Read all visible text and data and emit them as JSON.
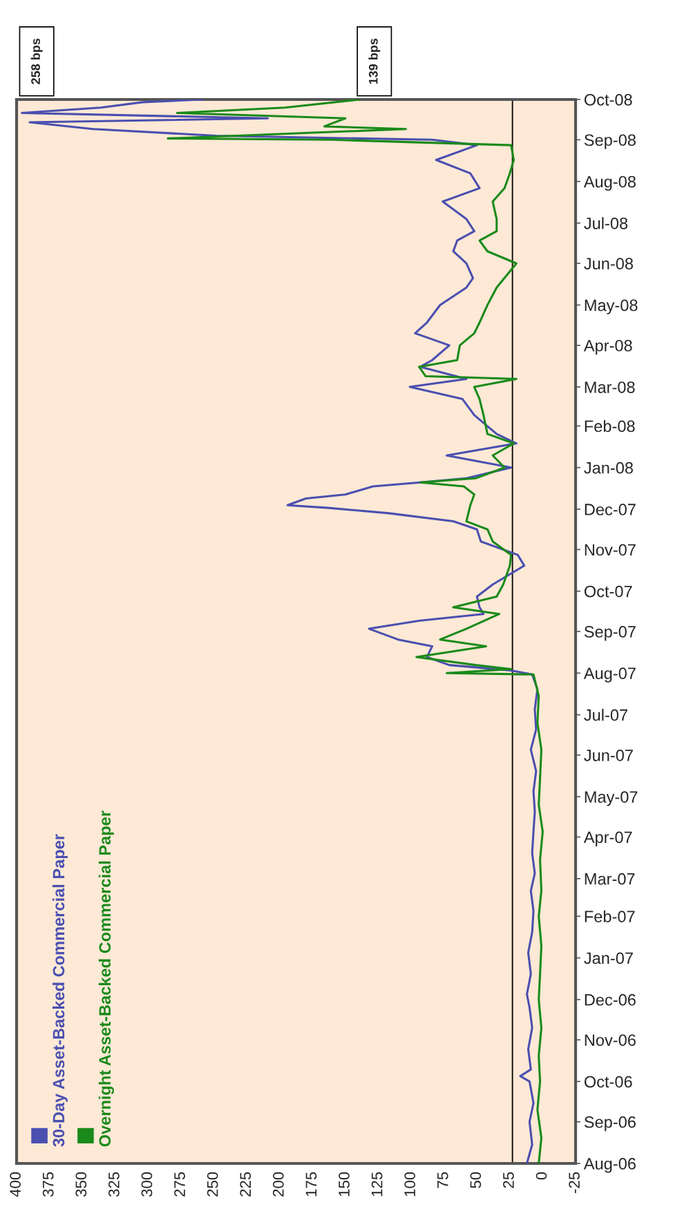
{
  "chart_data": {
    "type": "line",
    "orientation": "horizontal",
    "series": [
      {
        "name": "30-Day Asset-Backed Commercial Paper",
        "color": "#4a4fb0",
        "x": [
          "2006-08-01",
          "2006-08-15",
          "2006-09-01",
          "2006-09-15",
          "2006-10-01",
          "2006-10-05",
          "2006-10-10",
          "2006-10-25",
          "2006-11-10",
          "2006-11-25",
          "2006-12-05",
          "2006-12-20",
          "2007-01-05",
          "2007-01-20",
          "2007-02-05",
          "2007-02-20",
          "2007-03-05",
          "2007-03-20",
          "2007-04-05",
          "2007-04-20",
          "2007-05-05",
          "2007-05-20",
          "2007-06-05",
          "2007-06-20",
          "2007-07-05",
          "2007-07-20",
          "2007-07-31",
          "2007-08-03",
          "2007-08-07",
          "2007-08-13",
          "2007-08-21",
          "2007-08-26",
          "2007-09-03",
          "2007-09-09",
          "2007-09-14",
          "2007-09-19",
          "2007-09-27",
          "2007-10-06",
          "2007-10-20",
          "2007-10-28",
          "2007-11-07",
          "2007-11-16",
          "2007-11-22",
          "2007-11-28",
          "2007-12-02",
          "2007-12-04",
          "2007-12-09",
          "2007-12-12",
          "2007-12-18",
          "2007-12-21",
          "2007-12-24",
          "2008-01-01",
          "2008-01-10",
          "2008-01-19",
          "2008-01-26",
          "2008-02-09",
          "2008-02-21",
          "2008-03-01",
          "2008-03-07",
          "2008-03-16",
          "2008-03-21",
          "2008-04-01",
          "2008-04-10",
          "2008-04-18",
          "2008-05-01",
          "2008-05-14",
          "2008-05-21",
          "2008-06-01",
          "2008-06-10",
          "2008-06-18",
          "2008-06-25",
          "2008-07-04",
          "2008-07-17",
          "2008-07-27",
          "2008-08-07",
          "2008-08-17",
          "2008-08-28",
          "2008-09-01",
          "2008-09-04",
          "2008-09-09",
          "2008-09-14",
          "2008-09-17",
          "2008-09-21",
          "2008-09-25",
          "2008-09-29",
          "2008-10-01"
        ],
        "values": [
          12,
          8,
          10,
          7,
          10,
          17,
          9,
          11,
          8,
          10,
          12,
          9,
          11,
          8,
          7,
          9,
          6,
          8,
          7,
          6,
          7,
          5,
          9,
          5,
          6,
          4,
          8,
          24,
          71,
          88,
          84,
          110,
          132,
          94,
          45,
          48,
          50,
          38,
          14,
          19,
          47,
          50,
          68,
          117,
          163,
          194,
          180,
          150,
          129,
          93,
          58,
          24,
          73,
          20,
          35,
          52,
          61,
          101,
          58,
          93,
          84,
          71,
          97,
          88,
          78,
          58,
          53,
          58,
          68,
          65,
          52,
          58,
          76,
          48,
          55,
          81,
          50,
          84,
          248,
          342,
          390,
          209,
          396,
          336,
          304,
          258
        ]
      },
      {
        "name": "Overnight Asset-Backed Commercial Paper",
        "color": "#1a8a1a",
        "x": [
          "2006-08-01",
          "2006-08-20",
          "2006-09-10",
          "2006-10-01",
          "2006-10-20",
          "2006-11-10",
          "2006-12-01",
          "2006-12-20",
          "2007-01-10",
          "2007-02-01",
          "2007-02-20",
          "2007-03-15",
          "2007-04-05",
          "2007-04-25",
          "2007-05-15",
          "2007-06-05",
          "2007-06-25",
          "2007-07-15",
          "2007-07-31",
          "2007-08-01",
          "2007-08-04",
          "2007-08-07",
          "2007-08-13",
          "2007-08-21",
          "2007-08-26",
          "2007-09-03",
          "2007-09-14",
          "2007-09-19",
          "2007-09-27",
          "2007-10-06",
          "2007-10-20",
          "2007-10-28",
          "2007-11-07",
          "2007-11-16",
          "2007-11-22",
          "2007-12-04",
          "2007-12-12",
          "2007-12-18",
          "2007-12-21",
          "2007-12-24",
          "2008-01-01",
          "2008-01-10",
          "2008-01-19",
          "2008-01-26",
          "2008-02-09",
          "2008-02-21",
          "2008-03-01",
          "2008-03-07",
          "2008-03-09",
          "2008-03-16",
          "2008-03-21",
          "2008-04-01",
          "2008-04-10",
          "2008-04-18",
          "2008-05-01",
          "2008-05-14",
          "2008-06-01",
          "2008-06-10",
          "2008-06-18",
          "2008-06-25",
          "2008-07-04",
          "2008-07-17",
          "2008-07-27",
          "2008-08-07",
          "2008-08-17",
          "2008-08-28",
          "2008-09-01",
          "2008-09-02",
          "2008-09-09",
          "2008-09-11",
          "2008-09-17",
          "2008-09-21",
          "2008-09-25",
          "2008-10-01"
        ],
        "values": [
          3,
          1,
          4,
          2,
          3,
          1,
          3,
          2,
          1,
          3,
          1,
          2,
          0,
          3,
          2,
          1,
          4,
          3,
          7,
          73,
          24,
          51,
          96,
          43,
          78,
          58,
          33,
          68,
          35,
          30,
          25,
          24,
          38,
          42,
          58,
          55,
          52,
          60,
          93,
          51,
          29,
          38,
          22,
          42,
          45,
          48,
          52,
          20,
          89,
          94,
          65,
          63,
          52,
          48,
          42,
          35,
          20,
          42,
          48,
          35,
          35,
          38,
          29,
          25,
          22,
          24,
          160,
          285,
          104,
          166,
          150,
          278,
          196,
          139
        ]
      }
    ],
    "xlim": [
      400,
      -25
    ],
    "xticks": [
      400,
      375,
      350,
      325,
      300,
      275,
      250,
      225,
      200,
      175,
      150,
      125,
      100,
      75,
      50,
      25,
      0,
      -25
    ],
    "ylim": [
      "2006-08-01",
      "2008-10-01"
    ],
    "yticks": [
      {
        "value": "2006-08-01",
        "label": "Aug-06"
      },
      {
        "value": "2006-09-01",
        "label": "Sep-06"
      },
      {
        "value": "2006-10-01",
        "label": "Oct-06"
      },
      {
        "value": "2006-11-01",
        "label": "Nov-06"
      },
      {
        "value": "2006-12-01",
        "label": "Dec-06"
      },
      {
        "value": "2007-01-01",
        "label": "Jan-07"
      },
      {
        "value": "2007-02-01",
        "label": "Feb-07"
      },
      {
        "value": "2007-03-01",
        "label": "Mar-07"
      },
      {
        "value": "2007-04-01",
        "label": "Apr-07"
      },
      {
        "value": "2007-05-01",
        "label": "May-07"
      },
      {
        "value": "2007-06-01",
        "label": "Jun-07"
      },
      {
        "value": "2007-07-01",
        "label": "Jul-07"
      },
      {
        "value": "2007-08-01",
        "label": "Aug-07"
      },
      {
        "value": "2007-09-01",
        "label": "Sep-07"
      },
      {
        "value": "2007-10-01",
        "label": "Oct-07"
      },
      {
        "value": "2007-11-01",
        "label": "Nov-07"
      },
      {
        "value": "2007-12-01",
        "label": "Dec-07"
      },
      {
        "value": "2008-01-01",
        "label": "Jan-08"
      },
      {
        "value": "2008-02-01",
        "label": "Feb-08"
      },
      {
        "value": "2008-03-01",
        "label": "Mar-08"
      },
      {
        "value": "2008-04-01",
        "label": "Apr-08"
      },
      {
        "value": "2008-05-01",
        "label": "May-08"
      },
      {
        "value": "2008-06-01",
        "label": "Jun-08"
      },
      {
        "value": "2008-07-01",
        "label": "Jul-08"
      },
      {
        "value": "2008-08-01",
        "label": "Aug-08"
      },
      {
        "value": "2008-09-01",
        "label": "Sep-08"
      },
      {
        "value": "2008-10-01",
        "label": "Oct-08"
      }
    ],
    "ref_lines": [
      {
        "axis": "x",
        "value": 23,
        "color": "#000000"
      }
    ],
    "annotations": [
      "258 bps",
      "139 bps"
    ],
    "legend": "bottom left",
    "grid": false,
    "marker": "none",
    "line_style": "solid"
  }
}
